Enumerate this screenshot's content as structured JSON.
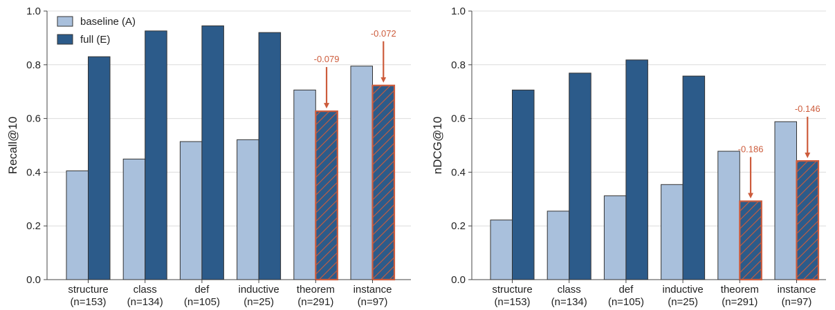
{
  "chart_data": [
    {
      "type": "bar",
      "categories": [
        "structure",
        "class",
        "def",
        "inductive",
        "theorem",
        "instance"
      ],
      "category_counts": [
        "(n=153)",
        "(n=134)",
        "(n=105)",
        "(n=25)",
        "(n=291)",
        "(n=97)"
      ],
      "ylabel": "Recall@10",
      "xlabel": "",
      "ylim": [
        0,
        1.0
      ],
      "yticks": [
        "0.0",
        "0.2",
        "0.4",
        "0.6",
        "0.8",
        "1.0"
      ],
      "grid": "horizontal",
      "legend": "top-left",
      "series": [
        {
          "name": "baseline (A)",
          "values": [
            0.405,
            0.449,
            0.514,
            0.521,
            0.706,
            0.795
          ],
          "color": "#a9c0dc"
        },
        {
          "name": "full (E)",
          "values": [
            0.83,
            0.926,
            0.945,
            0.92,
            0.627,
            0.723
          ],
          "color": "#2c5b8a"
        }
      ],
      "annotations": [
        {
          "category": "theorem",
          "label": "-0.079",
          "color": "#cd5c3c"
        },
        {
          "category": "instance",
          "label": "-0.072",
          "color": "#cd5c3c"
        }
      ]
    },
    {
      "type": "bar",
      "categories": [
        "structure",
        "class",
        "def",
        "inductive",
        "theorem",
        "instance"
      ],
      "category_counts": [
        "(n=153)",
        "(n=134)",
        "(n=105)",
        "(n=25)",
        "(n=291)",
        "(n=97)"
      ],
      "ylabel": "nDCG@10",
      "xlabel": "",
      "ylim": [
        0,
        1.0
      ],
      "yticks": [
        "0.0",
        "0.2",
        "0.4",
        "0.6",
        "0.8",
        "1.0"
      ],
      "grid": "horizontal",
      "legend": "none",
      "series": [
        {
          "name": "baseline (A)",
          "values": [
            0.222,
            0.255,
            0.312,
            0.354,
            0.478,
            0.588
          ],
          "color": "#a9c0dc"
        },
        {
          "name": "full (E)",
          "values": [
            0.706,
            0.769,
            0.818,
            0.758,
            0.292,
            0.442
          ],
          "color": "#2c5b8a"
        }
      ],
      "annotations": [
        {
          "category": "theorem",
          "label": "-0.186",
          "color": "#cd5c3c"
        },
        {
          "category": "instance",
          "label": "-0.146",
          "color": "#cd5c3c"
        }
      ]
    }
  ]
}
